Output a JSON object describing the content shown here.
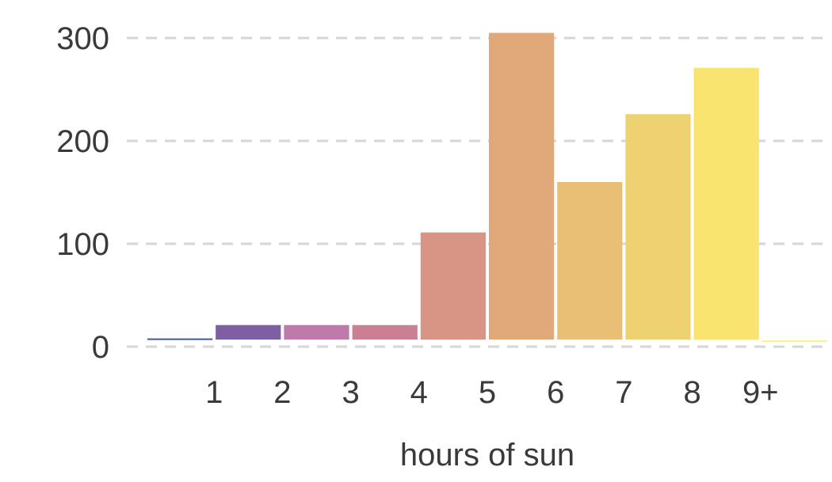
{
  "chart_data": {
    "type": "bar",
    "title": "",
    "xlabel": "hours of sun",
    "ylabel": "",
    "ylim": [
      0,
      310
    ],
    "yticks": [
      0,
      100,
      200,
      300
    ],
    "grid": "horizontal-dashed",
    "legend": "none",
    "bins": [
      {
        "label": "",
        "value": 8,
        "color": "#3d5a9a"
      },
      {
        "label": "1",
        "value": 21,
        "color": "#7f5fa3"
      },
      {
        "label": "2",
        "value": 21,
        "color": "#bf79aa"
      },
      {
        "label": "3",
        "value": 21,
        "color": "#cb7f93"
      },
      {
        "label": "4",
        "value": 111,
        "color": "#d89585"
      },
      {
        "label": "5",
        "value": 305,
        "color": "#e1a879"
      },
      {
        "label": "6",
        "value": 160,
        "color": "#e9bf75"
      },
      {
        "label": "7",
        "value": 226,
        "color": "#eed272"
      },
      {
        "label": "8",
        "value": 271,
        "color": "#f8e46f"
      },
      {
        "label": "9+",
        "value": 6,
        "color": "#fbf27a"
      }
    ]
  }
}
